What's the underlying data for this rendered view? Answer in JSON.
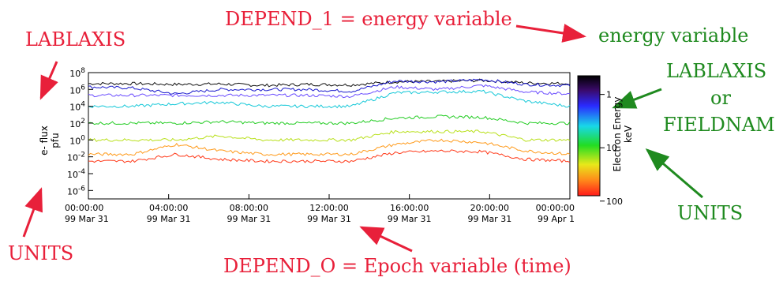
{
  "annotations": {
    "depend1": "DEPEND_1 = energy variable",
    "energy_variable": "energy variable",
    "lablaxis_left": "LABLAXIS",
    "lablaxis_right": "LABLAXIS",
    "or": "or",
    "fieldnam": "FIELDNAM",
    "units_left": "UNITS",
    "units_right": "UNITS",
    "depend0": "DEPEND_O = Epoch variable (time)"
  },
  "colors": {
    "annotation_red": "#e8203a",
    "annotation_green": "#1f8a1f"
  },
  "chart_data": {
    "type": "line",
    "ylabel": "e- flux",
    "yunits": "pfu",
    "y_scale": "log",
    "ylim": [
      1e-07,
      100000000.0
    ],
    "y_ticks": [
      {
        "exp": "8"
      },
      {
        "exp": "6"
      },
      {
        "exp": "4"
      },
      {
        "exp": "2"
      },
      {
        "exp": "0"
      },
      {
        "exp": "-2"
      },
      {
        "exp": "-4"
      },
      {
        "exp": "-6"
      }
    ],
    "x_ticks": [
      {
        "time": "00:00:00",
        "date": "99 Mar 31"
      },
      {
        "time": "04:00:00",
        "date": "99 Mar 31"
      },
      {
        "time": "08:00:00",
        "date": "99 Mar 31"
      },
      {
        "time": "12:00:00",
        "date": "99 Mar 31"
      },
      {
        "time": "16:00:00",
        "date": "99 Mar 31"
      },
      {
        "time": "20:00:00",
        "date": "99 Mar 31"
      },
      {
        "time": "00:00:00",
        "date": "99 Apr 1"
      }
    ],
    "colorbar": {
      "label": "Electron Energy",
      "units": "keV",
      "ticks": [
        "1",
        "10",
        "100"
      ]
    },
    "series": [
      {
        "color": "#111111",
        "values": [
          5000000.0,
          5000000.0,
          4000000.0,
          4500000.0,
          3000000.0,
          4000000.0,
          3500000.0,
          8000000.0,
          9000000.0,
          12000000.0,
          6000000.0,
          5000000.0
        ]
      },
      {
        "color": "#1a1acc",
        "values": [
          2000000.0,
          1500000.0,
          300000.0,
          1000000.0,
          1000000.0,
          1000000.0,
          600000.0,
          10000000.0,
          8000000.0,
          15000000.0,
          4000000.0,
          3000000.0
        ]
      },
      {
        "color": "#6a4cff",
        "values": [
          200000.0,
          200000.0,
          200000.0,
          200000.0,
          200000.0,
          200000.0,
          150000.0,
          2000000.0,
          1000000.0,
          3000000.0,
          500000.0,
          300000.0
        ]
      },
      {
        "color": "#15c8d8",
        "values": [
          10000.0,
          10000.0,
          20000.0,
          30000.0,
          10000.0,
          10000.0,
          10000.0,
          400000.0,
          500000.0,
          600000.0,
          40000.0,
          10000.0
        ]
      },
      {
        "color": "#22cc22",
        "values": [
          100.0,
          100.0,
          100.0,
          150.0,
          100.0,
          100.0,
          100.0,
          400.0,
          600.0,
          500.0,
          100.0,
          100.0
        ]
      },
      {
        "color": "#b8e01a",
        "values": [
          1.0,
          1.0,
          1.0,
          3.0,
          1.0,
          1.0,
          1.0,
          10.0,
          10.0,
          10.0,
          1.0,
          1.0
        ]
      },
      {
        "color": "#ff9a1a",
        "values": [
          0.02,
          0.02,
          0.3,
          0.05,
          0.02,
          0.02,
          0.02,
          0.3,
          1.0,
          0.5,
          0.05,
          0.02
        ]
      },
      {
        "color": "#ff3a1a",
        "values": [
          0.003,
          0.003,
          0.02,
          0.005,
          0.003,
          0.003,
          0.003,
          0.03,
          0.05,
          0.04,
          0.005,
          0.003
        ]
      }
    ]
  }
}
